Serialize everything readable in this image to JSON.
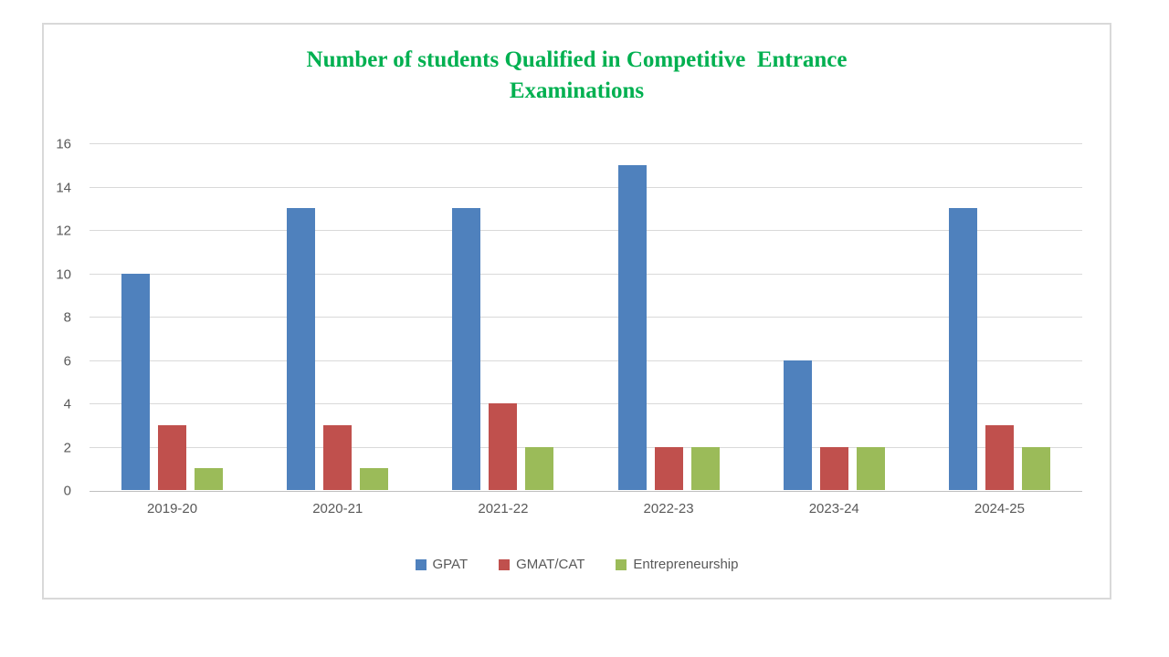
{
  "chart_data": {
    "type": "bar",
    "title_lines": {
      "line1": "Number of students Qualified in Competitive  Entrance",
      "line2": "Examinations"
    },
    "title_color": "#00B050",
    "categories": [
      "2019-20",
      "2020-21",
      "2021-22",
      "2022-23",
      "2023-24",
      "2024-25"
    ],
    "series": [
      {
        "name": "GPAT",
        "color": "#4F81BD",
        "values": [
          10,
          13,
          13,
          15,
          6,
          13
        ]
      },
      {
        "name": "GMAT/CAT",
        "color": "#C0504D",
        "values": [
          3,
          3,
          4,
          2,
          2,
          3
        ]
      },
      {
        "name": "Entrepreneurship",
        "color": "#9BBB59",
        "values": [
          1,
          1,
          2,
          2,
          2,
          2
        ]
      }
    ],
    "ylim": [
      0,
      16
    ],
    "ytick_step": 2,
    "ytick_labels": [
      "0",
      "2",
      "4",
      "6",
      "8",
      "10",
      "12",
      "14",
      "16"
    ],
    "grid": true,
    "legend_position": "bottom",
    "xlabel": "",
    "ylabel": ""
  },
  "colors": {
    "gridline": "#d9d9d9",
    "axis_line": "#bfbfbf",
    "tick_text": "#595959",
    "frame_border": "#d9d9d9",
    "background": "#ffffff"
  }
}
